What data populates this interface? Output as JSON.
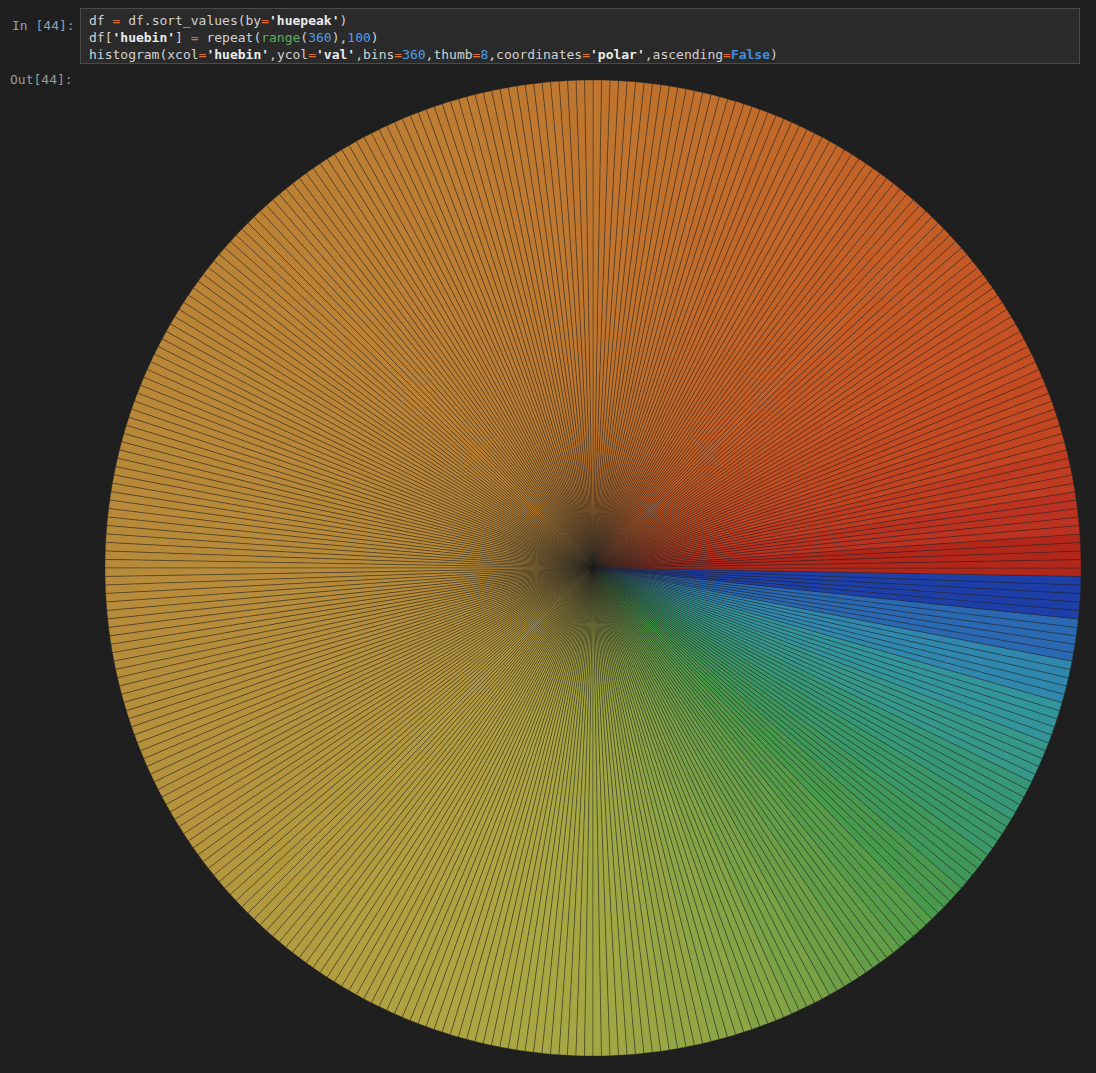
{
  "notebook": {
    "input_prompt": "In [44]:",
    "code": [
      "df = df.sort_values(by='huepeak')",
      "df['huebin'] = repeat(range(360),100)",
      "histogram(xcol='huebin',ycol='val',bins=360,thumb=8,coordinates='polar',ascending=False)"
    ],
    "output_prompt": "Out[44]:"
  },
  "chart_data": {
    "type": "histogram",
    "bins": [
      0,
      1,
      2,
      3,
      4,
      5,
      6,
      7,
      8,
      9,
      10,
      11,
      12,
      13,
      14,
      15,
      16,
      17,
      18,
      19,
      20,
      21,
      22,
      23,
      24,
      25,
      26,
      27,
      28,
      29,
      30,
      31,
      32,
      33,
      34,
      35,
      36,
      37,
      38,
      39,
      40,
      41,
      42,
      43,
      44,
      45,
      46,
      47,
      48,
      49,
      50,
      51,
      52,
      53,
      54,
      55,
      56,
      57,
      58,
      59,
      60,
      61,
      62,
      63,
      64,
      65,
      66,
      67,
      68,
      69,
      70,
      71,
      72,
      73,
      74,
      75,
      76,
      77,
      78,
      79,
      80,
      81,
      82,
      83,
      84,
      85,
      86,
      87,
      88,
      89,
      90,
      91,
      92,
      93,
      94,
      95,
      96,
      97,
      98,
      99,
      100,
      101,
      102,
      103,
      104,
      105,
      106,
      107,
      108,
      109,
      110,
      111,
      112,
      113,
      114,
      115,
      116,
      117,
      118,
      119,
      120,
      121,
      122,
      123,
      124,
      125,
      126,
      127,
      128,
      129,
      130,
      131,
      132,
      133,
      134,
      135,
      136,
      137,
      138,
      139,
      140,
      141,
      142,
      143,
      144,
      145,
      146,
      147,
      148,
      149,
      150,
      151,
      152,
      153,
      154,
      155,
      156,
      157,
      158,
      159,
      160,
      161,
      162,
      163,
      164,
      165,
      166,
      167,
      168,
      169,
      170,
      171,
      172,
      173,
      174,
      175,
      176,
      177,
      178,
      179,
      180,
      181,
      182,
      183,
      184,
      185,
      186,
      187,
      188,
      189,
      190,
      191,
      192,
      193,
      194,
      195,
      196,
      197,
      198,
      199,
      200,
      201,
      202,
      203,
      204,
      205,
      206,
      207,
      208,
      209,
      210,
      211,
      212,
      213,
      214,
      215,
      216,
      217,
      218,
      219,
      220,
      221,
      222,
      223,
      224,
      225,
      226,
      227,
      228,
      229,
      230,
      231,
      232,
      233,
      234,
      235,
      236,
      237,
      238,
      239,
      240,
      241,
      242,
      243,
      244,
      245,
      246,
      247,
      248,
      249,
      250,
      251,
      252,
      253,
      254,
      255,
      256,
      257,
      258,
      259,
      260,
      261,
      262,
      263,
      264,
      265,
      266,
      267,
      268,
      269,
      270,
      271,
      272,
      273,
      274,
      275,
      276,
      277,
      278,
      279,
      280,
      281,
      282,
      283,
      284,
      285,
      286,
      287,
      288,
      289,
      290,
      291,
      292,
      293,
      294,
      295,
      296,
      297,
      298,
      299,
      300,
      301,
      302,
      303,
      304,
      305,
      306,
      307,
      308,
      309,
      310,
      311,
      312,
      313,
      314,
      315,
      316,
      317,
      318,
      319,
      320,
      321,
      322,
      323,
      324,
      325,
      326,
      327,
      328,
      329,
      330,
      331,
      332,
      333,
      334,
      335,
      336,
      337,
      338,
      339,
      340,
      341,
      342,
      343,
      344,
      345,
      346,
      347,
      348,
      349,
      350,
      351,
      352,
      353,
      354,
      355,
      356,
      357,
      358,
      359,
      360
    ],
    "counts": [
      100,
      100,
      100,
      100,
      100,
      100,
      100,
      100,
      100,
      100,
      100,
      100,
      100,
      100,
      100,
      100,
      100,
      100,
      100,
      100,
      100,
      100,
      100,
      100,
      100,
      100,
      100,
      100,
      100,
      100,
      100,
      100,
      100,
      100,
      100,
      100,
      100,
      100,
      100,
      100,
      100,
      100,
      100,
      100,
      100,
      100,
      100,
      100,
      100,
      100,
      100,
      100,
      100,
      100,
      100,
      100,
      100,
      100,
      100,
      100,
      100,
      100,
      100,
      100,
      100,
      100,
      100,
      100,
      100,
      100,
      100,
      100,
      100,
      100,
      100,
      100,
      100,
      100,
      100,
      100,
      100,
      100,
      100,
      100,
      100,
      100,
      100,
      100,
      100,
      100,
      100,
      100,
      100,
      100,
      100,
      100,
      100,
      100,
      100,
      100,
      100,
      100,
      100,
      100,
      100,
      100,
      100,
      100,
      100,
      100,
      100,
      100,
      100,
      100,
      100,
      100,
      100,
      100,
      100,
      100,
      100,
      100,
      100,
      100,
      100,
      100,
      100,
      100,
      100,
      100,
      100,
      100,
      100,
      100,
      100,
      100,
      100,
      100,
      100,
      100,
      100,
      100,
      100,
      100,
      100,
      100,
      100,
      100,
      100,
      100,
      100,
      100,
      100,
      100,
      100,
      100,
      100,
      100,
      100,
      100,
      100,
      100,
      100,
      100,
      100,
      100,
      100,
      100,
      100,
      100,
      100,
      100,
      100,
      100,
      100,
      100,
      100,
      100,
      100,
      100,
      100,
      100,
      100,
      100,
      100,
      100,
      100,
      100,
      100,
      100,
      100,
      100,
      100,
      100,
      100,
      100,
      100,
      100,
      100,
      100,
      100,
      100,
      100,
      100,
      100,
      100,
      100,
      100,
      100,
      100,
      100,
      100,
      100,
      100,
      100,
      100,
      100,
      100,
      100,
      100,
      100,
      100,
      100,
      100,
      100,
      100,
      100,
      100,
      100,
      100,
      100,
      100,
      100,
      100,
      100,
      100,
      100,
      100,
      100,
      100,
      100,
      100,
      100,
      100,
      100,
      100,
      100,
      100,
      100,
      100,
      100,
      100,
      100,
      100,
      100,
      100,
      100,
      100,
      100,
      100,
      100,
      100,
      100,
      100,
      100,
      100,
      100,
      100,
      100,
      100,
      100,
      100,
      100,
      100,
      100,
      100,
      100,
      100,
      100,
      100,
      100,
      100,
      100,
      100,
      100,
      100,
      100,
      100,
      100,
      100,
      100,
      100,
      100,
      100,
      100,
      100,
      100,
      100,
      100,
      100,
      100,
      100,
      100,
      100,
      100,
      100,
      100,
      100,
      100,
      100,
      100,
      100,
      100,
      100,
      100,
      100,
      100,
      100,
      100,
      100,
      100,
      100,
      100,
      100,
      100,
      100,
      100,
      100,
      100,
      100,
      100,
      100,
      100,
      100,
      100,
      100,
      100,
      100,
      100,
      100,
      100,
      100,
      100,
      100,
      100,
      100,
      100,
      100,
      100,
      100,
      100,
      100,
      100,
      100,
      100,
      100,
      100,
      100,
      100,
      100
    ],
    "colors": [
      "#b3261a",
      "#b3261a",
      "#b3261a",
      "#b3261a",
      "#b3261a",
      "#bb3320",
      "#bb3320",
      "#bb3320",
      "#bb3320",
      "#bb3320",
      "#c03c20",
      "#c03c20",
      "#c03c20",
      "#c03c20",
      "#c03c20",
      "#c24420",
      "#c24420",
      "#c24420",
      "#c24420",
      "#c24420",
      "#c44a21",
      "#c44a21",
      "#c44a21",
      "#c44a21",
      "#c44a21",
      "#c54f22",
      "#c54f22",
      "#c54f22",
      "#c54f22",
      "#c54f22",
      "#c55323",
      "#c55323",
      "#c55323",
      "#c55323",
      "#c55323",
      "#c55724",
      "#c55724",
      "#c55724",
      "#c55724",
      "#c55724",
      "#c45a25",
      "#c45a25",
      "#c45a25",
      "#c45a25",
      "#c45a25",
      "#c45d26",
      "#c45d26",
      "#c45d26",
      "#c45d26",
      "#c45d26",
      "#c36027",
      "#c36027",
      "#c36027",
      "#c36027",
      "#c36027",
      "#c36328",
      "#c36328",
      "#c36328",
      "#c36328",
      "#c36328",
      "#c26629",
      "#c26629",
      "#c26629",
      "#c26629",
      "#c26629",
      "#c2692a",
      "#c2692a",
      "#c2692a",
      "#c2692a",
      "#c2692a",
      "#c16c2b",
      "#c16c2b",
      "#c16c2b",
      "#c16c2b",
      "#c16c2b",
      "#c16f2c",
      "#c16f2c",
      "#c16f2c",
      "#c16f2c",
      "#c16f2c",
      "#c0722d",
      "#c0722d",
      "#c0722d",
      "#c0722d",
      "#c0722d",
      "#c0742e",
      "#c0742e",
      "#c0742e",
      "#c0742e",
      "#c0742e",
      "#bf762f",
      "#bf762f",
      "#bf762f",
      "#bf762f",
      "#bf762f",
      "#bf7830",
      "#bf7830",
      "#bf7830",
      "#bf7830",
      "#bf7830",
      "#be7a31",
      "#be7a31",
      "#be7a31",
      "#be7a31",
      "#be7a31",
      "#be7c32",
      "#be7c32",
      "#be7c32",
      "#be7c32",
      "#be7c32",
      "#bd7d33",
      "#bd7d33",
      "#bd7d33",
      "#bd7d33",
      "#bd7d33",
      "#bd7e34",
      "#bd7e34",
      "#bd7e34",
      "#bd7e34",
      "#bd7e34",
      "#bc7f34",
      "#bc7f34",
      "#bc7f34",
      "#bc7f34",
      "#bc7f34",
      "#bc8035",
      "#bc8035",
      "#bc8035",
      "#bc8035",
      "#bc8035",
      "#bb8135",
      "#bb8135",
      "#bb8135",
      "#bb8135",
      "#bb8135",
      "#bb8236",
      "#bb8236",
      "#bb8236",
      "#bb8236",
      "#bb8236",
      "#ba8336",
      "#ba8336",
      "#ba8336",
      "#ba8336",
      "#ba8336",
      "#ba8437",
      "#ba8437",
      "#ba8437",
      "#ba8437",
      "#ba8437",
      "#b98537",
      "#b98537",
      "#b98537",
      "#b98537",
      "#b98537",
      "#b98638",
      "#b98638",
      "#b98638",
      "#b98638",
      "#b98638",
      "#b88738",
      "#b88738",
      "#b88738",
      "#b88738",
      "#b88738",
      "#b88839",
      "#b88839",
      "#b88839",
      "#b88839",
      "#b88839",
      "#b88939",
      "#b88939",
      "#b88939",
      "#b88939",
      "#b88939",
      "#b78a3a",
      "#b78a3a",
      "#b78a3a",
      "#b78a3a",
      "#b78a3a",
      "#b78b3a",
      "#b78b3a",
      "#b78b3a",
      "#b78b3a",
      "#b78b3a",
      "#b78c3b",
      "#b78c3b",
      "#b78c3b",
      "#b78c3b",
      "#b78c3b",
      "#b68e3b",
      "#b68e3b",
      "#b68e3b",
      "#b68e3b",
      "#b68e3b",
      "#b68f3c",
      "#b68f3c",
      "#b68f3c",
      "#b68f3c",
      "#b68f3c",
      "#b6913c",
      "#b6913c",
      "#b6913c",
      "#b6913c",
      "#b6913c",
      "#b5923d",
      "#b5923d",
      "#b5923d",
      "#b5923d",
      "#b5923d",
      "#b5943d",
      "#b5943d",
      "#b5943d",
      "#b5943d",
      "#b5943d",
      "#b5963e",
      "#b5963e",
      "#b5963e",
      "#b5963e",
      "#b5963e",
      "#b4983e",
      "#b4983e",
      "#b4983e",
      "#b4983e",
      "#b4983e",
      "#b49a3f",
      "#b49a3f",
      "#b49a3f",
      "#b49a3f",
      "#b49a3f",
      "#b39c3f",
      "#b39c3f",
      "#b39c3f",
      "#b39c3f",
      "#b39c3f",
      "#b39e40",
      "#b39e40",
      "#b39e40",
      "#b39e40",
      "#b39e40",
      "#b2a040",
      "#b2a040",
      "#b2a040",
      "#b2a040",
      "#b2a040",
      "#b1a241",
      "#b1a241",
      "#b1a241",
      "#b1a241",
      "#b1a241",
      "#afa441",
      "#afa441",
      "#afa441",
      "#afa441",
      "#afa441",
      "#ada542",
      "#ada542",
      "#ada542",
      "#ada542",
      "#ada542",
      "#aaa642",
      "#aaa642",
      "#aaa642",
      "#aaa642",
      "#aaa642",
      "#a6a743",
      "#a6a743",
      "#a6a743",
      "#a6a743",
      "#a6a743",
      "#a1a743",
      "#a1a743",
      "#a1a743",
      "#a1a743",
      "#a1a743",
      "#9ba744",
      "#9ba744",
      "#9ba744",
      "#9ba744",
      "#9ba744",
      "#94a644",
      "#94a644",
      "#94a644",
      "#94a644",
      "#94a644",
      "#8ca545",
      "#8ca545",
      "#8ca545",
      "#8ca545",
      "#8ca545",
      "#83a345",
      "#83a345",
      "#83a345",
      "#83a345",
      "#83a345",
      "#79a146",
      "#79a146",
      "#79a146",
      "#79a146",
      "#79a146",
      "#6e9f46",
      "#6e9f46",
      "#6e9f46",
      "#6e9f46",
      "#6e9f46",
      "#629d47",
      "#629d47",
      "#629d47",
      "#629d47",
      "#629d47",
      "#559b48",
      "#559b48",
      "#559b48",
      "#559b48",
      "#559b48",
      "#48994e",
      "#48994e",
      "#48994e",
      "#48994e",
      "#48994e",
      "#3f985a",
      "#3f985a",
      "#3f985a",
      "#3f985a",
      "#3f985a",
      "#3a9868",
      "#3a9868",
      "#3a9868",
      "#3a9868",
      "#3a9868",
      "#379878",
      "#379878",
      "#379878",
      "#379878",
      "#379878",
      "#35988a",
      "#35988a",
      "#35988a",
      "#35988a",
      "#35988a",
      "#33959c",
      "#33959c",
      "#33959c",
      "#33959c",
      "#33959c",
      "#3088ae",
      "#3088ae",
      "#3088ae",
      "#3088ae",
      "#3088ae",
      "#2a68b2",
      "#2a68b2",
      "#2a68b2",
      "#2a68b2",
      "#2a68b2",
      "#1f3fa8",
      "#1f3fa8",
      "#1f3fa8",
      "#1f3fa8",
      "#1f3fa8"
    ],
    "ylim": [
      0,
      100
    ],
    "tick_labels": false
  }
}
